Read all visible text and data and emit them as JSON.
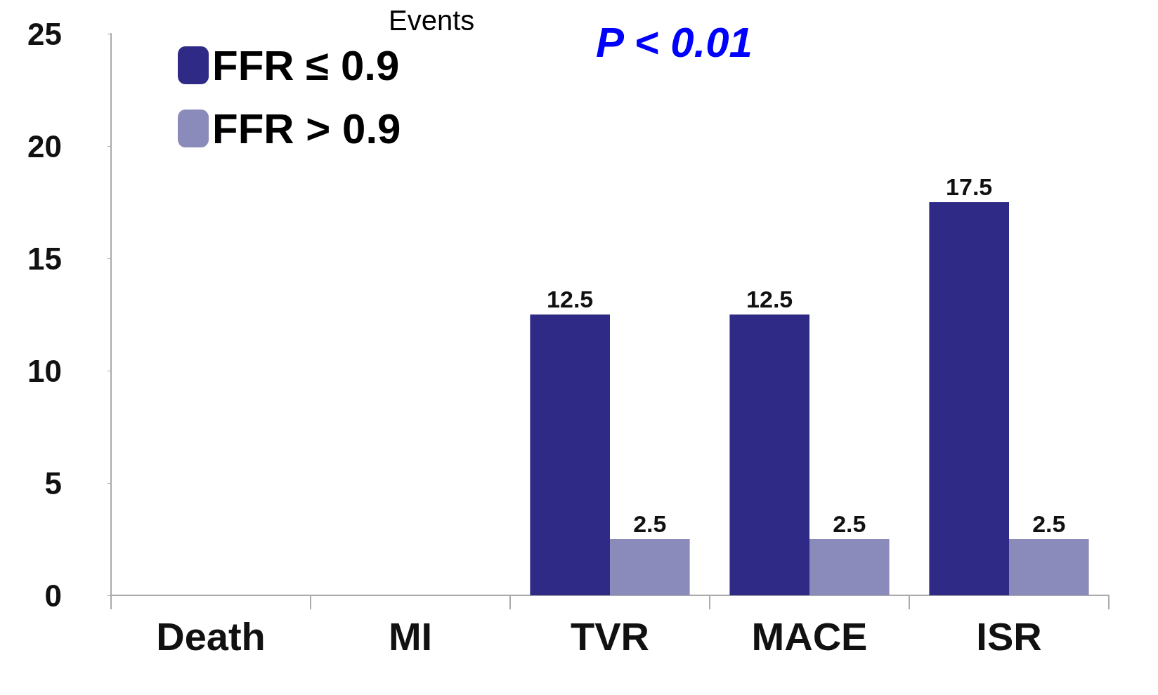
{
  "chart_data": {
    "type": "bar",
    "title": "Events",
    "categories": [
      "Death",
      "MI",
      "TVR",
      "MACE",
      "ISR"
    ],
    "series": [
      {
        "name": "FFR ≤ 0.9",
        "color": "#2e2a86",
        "values": [
          0,
          0,
          12.5,
          12.5,
          17.5
        ],
        "value_labels": [
          null,
          null,
          "12.5",
          "12.5",
          "17.5"
        ]
      },
      {
        "name": "FFR > 0.9",
        "color": "#8a8bba",
        "values": [
          0,
          0,
          2.5,
          2.5,
          2.5
        ],
        "value_labels": [
          null,
          null,
          "2.5",
          "2.5",
          "2.5"
        ]
      }
    ],
    "ylim": [
      0,
      25
    ],
    "yticks": [
      0,
      5,
      10,
      15,
      20,
      25
    ],
    "grid": false,
    "legend": "top left",
    "annotations": [
      "P < 0.01"
    ]
  }
}
